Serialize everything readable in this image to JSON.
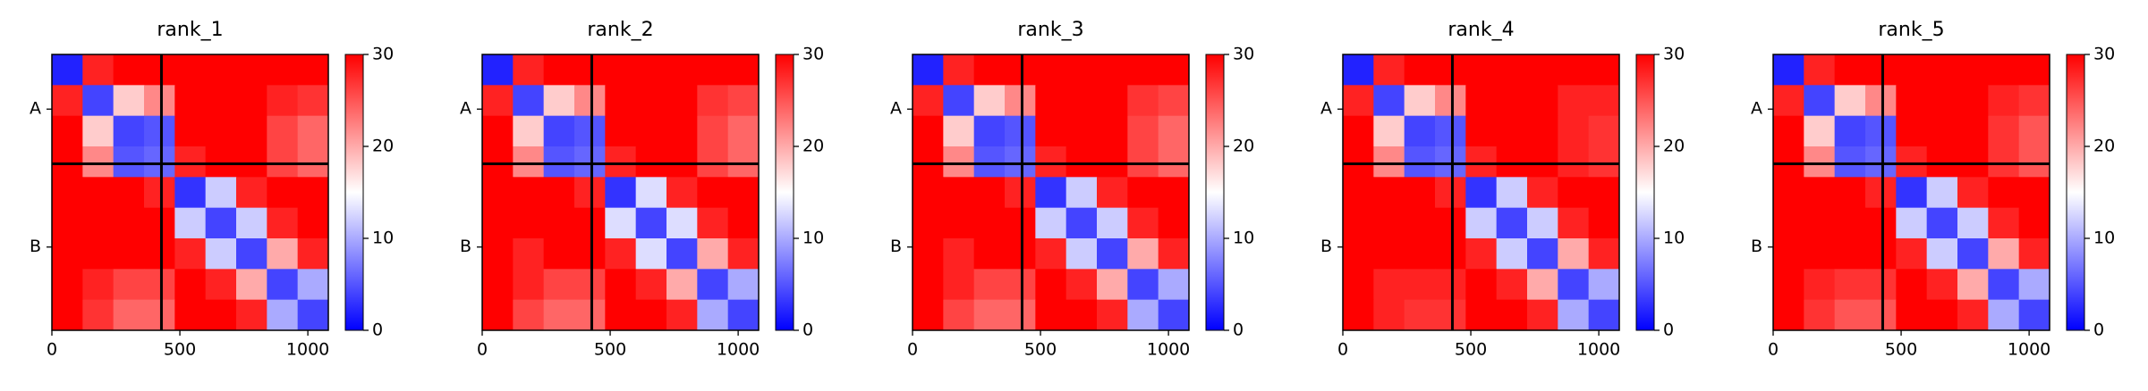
{
  "chart_data": [
    {
      "type": "heatmap",
      "title": "rank_1",
      "bins": [
        0,
        120,
        240,
        360,
        480,
        600,
        720,
        840,
        960,
        1080
      ],
      "values": [
        [
          2,
          28,
          30,
          30,
          30,
          30,
          30,
          30,
          30
        ],
        [
          28,
          4,
          18,
          22,
          30,
          30,
          30,
          28,
          27
        ],
        [
          30,
          18,
          4,
          5,
          30,
          30,
          30,
          26,
          24
        ],
        [
          30,
          22,
          5,
          6,
          28,
          30,
          30,
          26,
          24
        ],
        [
          30,
          30,
          30,
          28,
          3,
          12,
          28,
          30,
          30
        ],
        [
          30,
          30,
          30,
          30,
          12,
          4,
          12,
          28,
          30
        ],
        [
          30,
          30,
          30,
          30,
          28,
          12,
          4,
          20,
          28
        ],
        [
          30,
          28,
          26,
          26,
          30,
          28,
          20,
          4,
          10
        ],
        [
          30,
          27,
          24,
          24,
          30,
          30,
          28,
          10,
          4
        ]
      ],
      "xlim": [
        0,
        1080
      ],
      "xticks": [
        0,
        500,
        1000
      ],
      "ylim": [
        1080,
        0
      ],
      "yticks": [
        {
          "value": 214,
          "label": "A"
        },
        {
          "value": 754,
          "label": "B"
        }
      ],
      "chain_breaks": [
        428
      ],
      "colorbar_lim": [
        0,
        30
      ],
      "colorbar_ticks": [
        0,
        10,
        20,
        30
      ],
      "colormap": [
        "#0000ff",
        "#ffffff",
        "#ff0000"
      ]
    },
    {
      "type": "heatmap",
      "title": "rank_2",
      "bins": [
        0,
        120,
        240,
        360,
        480,
        600,
        720,
        840,
        960,
        1080
      ],
      "values": [
        [
          2,
          28,
          30,
          30,
          30,
          30,
          30,
          30,
          30
        ],
        [
          28,
          4,
          18,
          22,
          30,
          30,
          30,
          27,
          26
        ],
        [
          30,
          18,
          4,
          5,
          30,
          30,
          30,
          26,
          24
        ],
        [
          30,
          22,
          5,
          6,
          28,
          30,
          30,
          26,
          24
        ],
        [
          30,
          30,
          30,
          28,
          3,
          13,
          28,
          30,
          30
        ],
        [
          30,
          30,
          30,
          30,
          13,
          4,
          13,
          28,
          30
        ],
        [
          30,
          28,
          30,
          30,
          28,
          13,
          4,
          20,
          28
        ],
        [
          30,
          28,
          26,
          26,
          30,
          28,
          20,
          4,
          10
        ],
        [
          30,
          26,
          24,
          24,
          30,
          30,
          28,
          10,
          4
        ]
      ],
      "xlim": [
        0,
        1080
      ],
      "xticks": [
        0,
        500,
        1000
      ],
      "ylim": [
        1080,
        0
      ],
      "yticks": [
        {
          "value": 214,
          "label": "A"
        },
        {
          "value": 754,
          "label": "B"
        }
      ],
      "chain_breaks": [
        428
      ],
      "colorbar_lim": [
        0,
        30
      ],
      "colorbar_ticks": [
        0,
        10,
        20,
        30
      ],
      "colormap": [
        "#0000ff",
        "#ffffff",
        "#ff0000"
      ]
    },
    {
      "type": "heatmap",
      "title": "rank_3",
      "bins": [
        0,
        120,
        240,
        360,
        480,
        600,
        720,
        840,
        960,
        1080
      ],
      "values": [
        [
          2,
          28,
          30,
          30,
          30,
          30,
          30,
          30,
          30
        ],
        [
          28,
          4,
          18,
          22,
          30,
          30,
          30,
          27,
          26
        ],
        [
          30,
          18,
          4,
          5,
          30,
          30,
          30,
          26,
          24
        ],
        [
          30,
          22,
          5,
          6,
          28,
          30,
          30,
          26,
          24
        ],
        [
          30,
          30,
          30,
          28,
          3,
          12,
          28,
          30,
          30
        ],
        [
          30,
          30,
          30,
          30,
          12,
          4,
          12,
          28,
          30
        ],
        [
          30,
          28,
          30,
          30,
          28,
          12,
          4,
          20,
          28
        ],
        [
          30,
          28,
          26,
          26,
          30,
          28,
          20,
          4,
          10
        ],
        [
          30,
          26,
          24,
          24,
          30,
          30,
          28,
          10,
          4
        ]
      ],
      "xlim": [
        0,
        1080
      ],
      "xticks": [
        0,
        500,
        1000
      ],
      "ylim": [
        1080,
        0
      ],
      "yticks": [
        {
          "value": 214,
          "label": "A"
        },
        {
          "value": 754,
          "label": "B"
        }
      ],
      "chain_breaks": [
        428
      ],
      "colorbar_lim": [
        0,
        30
      ],
      "colorbar_ticks": [
        0,
        10,
        20,
        30
      ],
      "colormap": [
        "#0000ff",
        "#ffffff",
        "#ff0000"
      ]
    },
    {
      "type": "heatmap",
      "title": "rank_4",
      "bins": [
        0,
        120,
        240,
        360,
        480,
        600,
        720,
        840,
        960,
        1080
      ],
      "values": [
        [
          2,
          28,
          30,
          30,
          30,
          30,
          30,
          30,
          30
        ],
        [
          28,
          4,
          18,
          22,
          30,
          30,
          30,
          28,
          28
        ],
        [
          30,
          18,
          4,
          5,
          30,
          30,
          30,
          28,
          27
        ],
        [
          30,
          22,
          5,
          6,
          28,
          30,
          30,
          28,
          27
        ],
        [
          30,
          30,
          30,
          28,
          3,
          12,
          28,
          30,
          30
        ],
        [
          30,
          30,
          30,
          30,
          12,
          4,
          12,
          28,
          30
        ],
        [
          30,
          30,
          30,
          30,
          28,
          12,
          4,
          20,
          28
        ],
        [
          30,
          28,
          28,
          28,
          30,
          28,
          20,
          4,
          10
        ],
        [
          30,
          28,
          27,
          27,
          30,
          30,
          28,
          10,
          4
        ]
      ],
      "xlim": [
        0,
        1080
      ],
      "xticks": [
        0,
        500,
        1000
      ],
      "ylim": [
        1080,
        0
      ],
      "yticks": [
        {
          "value": 214,
          "label": "A"
        },
        {
          "value": 754,
          "label": "B"
        }
      ],
      "chain_breaks": [
        428
      ],
      "colorbar_lim": [
        0,
        30
      ],
      "colorbar_ticks": [
        0,
        10,
        20,
        30
      ],
      "colormap": [
        "#0000ff",
        "#ffffff",
        "#ff0000"
      ]
    },
    {
      "type": "heatmap",
      "title": "rank_5",
      "bins": [
        0,
        120,
        240,
        360,
        480,
        600,
        720,
        840,
        960,
        1080
      ],
      "values": [
        [
          2,
          28,
          30,
          30,
          30,
          30,
          30,
          30,
          30
        ],
        [
          28,
          4,
          18,
          22,
          30,
          30,
          30,
          28,
          27
        ],
        [
          30,
          18,
          4,
          5,
          30,
          30,
          30,
          27,
          25
        ],
        [
          30,
          22,
          5,
          6,
          28,
          30,
          30,
          27,
          25
        ],
        [
          30,
          30,
          30,
          28,
          3,
          12,
          28,
          30,
          30
        ],
        [
          30,
          30,
          30,
          30,
          12,
          4,
          12,
          28,
          30
        ],
        [
          30,
          30,
          30,
          30,
          28,
          12,
          4,
          20,
          28
        ],
        [
          30,
          28,
          27,
          27,
          30,
          28,
          20,
          4,
          10
        ],
        [
          30,
          27,
          25,
          25,
          30,
          30,
          28,
          10,
          4
        ]
      ],
      "xlim": [
        0,
        1080
      ],
      "xticks": [
        0,
        500,
        1000
      ],
      "ylim": [
        1080,
        0
      ],
      "yticks": [
        {
          "value": 214,
          "label": "A"
        },
        {
          "value": 754,
          "label": "B"
        }
      ],
      "chain_breaks": [
        428
      ],
      "colorbar_lim": [
        0,
        30
      ],
      "colorbar_ticks": [
        0,
        10,
        20,
        30
      ],
      "colormap": [
        "#0000ff",
        "#ffffff",
        "#ff0000"
      ]
    }
  ]
}
